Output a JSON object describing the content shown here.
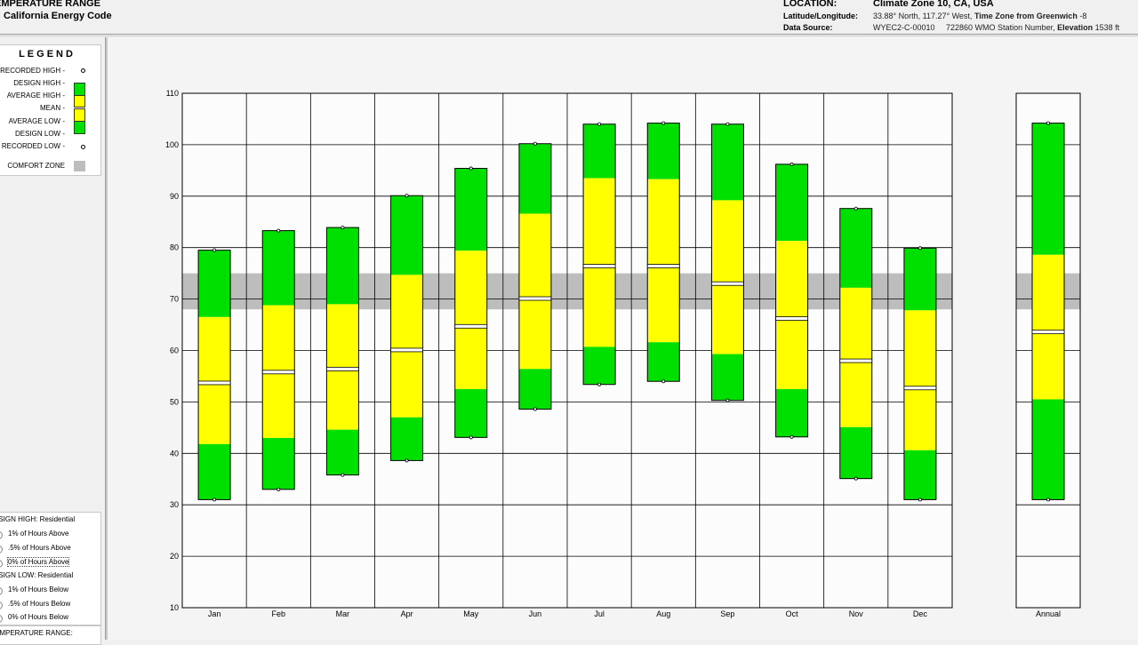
{
  "header": {
    "title_line1": "EMPERATURE RANGE",
    "title_line2": "California Energy Code",
    "location_label": "LOCATION:",
    "location_value": "Climate Zone 10, CA, USA",
    "latlon_label": "Latitude/Longitude:",
    "latlon_value": "33.88° North, 117.27° West,",
    "tz_label": "Time Zone from Greenwich",
    "tz_value": "-8",
    "source_label": "Data Source:",
    "source_value": "WYEC2-C-00010     722860 WMO Station Number,",
    "elev_label": "Elevation",
    "elev_value": "1538 ft"
  },
  "legend": {
    "title": "LEGEND",
    "recorded_high": "RECORDED HIGH -",
    "design_high": "DESIGN HIGH -",
    "average_high": "AVERAGE HIGH -",
    "mean": "MEAN -",
    "average_low": "AVERAGE LOW -",
    "design_low": "DESIGN LOW -",
    "recorded_low": "RECORDED LOW -",
    "comfort_zone": "COMFORT ZONE"
  },
  "options": {
    "design_high_heading": "ESIGN HIGH:  Residential",
    "high_options": [
      {
        "label": "1% of Hours Above",
        "selected": false
      },
      {
        "label": ".5% of Hours Above",
        "selected": false
      },
      {
        "label": "0% of Hours Above",
        "selected": true
      }
    ],
    "design_low_heading": "ESIGN LOW:  Residential",
    "low_options": [
      {
        "label": "1% of Hours Below",
        "selected": false
      },
      {
        "label": ".5% of Hours Below",
        "selected": false
      },
      {
        "label": "0% of Hours Below",
        "selected": true
      }
    ],
    "temperature_range_label": "EMPERATURE RANGE:"
  },
  "colors": {
    "design_band": "#00e000",
    "average_band": "#ffff00",
    "comfort_zone": "#bdbdbd",
    "plot_bg": "#fcfcfc"
  },
  "chart_data": {
    "type": "bar",
    "ylim": [
      10,
      110
    ],
    "yticks": [
      10,
      20,
      30,
      40,
      50,
      60,
      70,
      80,
      90,
      100,
      110
    ],
    "comfort_zone": [
      68,
      75
    ],
    "grid": true,
    "categories": [
      "Jan",
      "Feb",
      "Mar",
      "Apr",
      "May",
      "Jun",
      "Jul",
      "Aug",
      "Sep",
      "Oct",
      "Nov",
      "Dec"
    ],
    "annual_label": "Annual",
    "monthly": [
      {
        "recorded_high": 79.5,
        "design_high": 79.5,
        "average_high": 66.5,
        "mean": 53.7,
        "average_low": 41.8,
        "design_low": 31,
        "recorded_low": 31
      },
      {
        "recorded_high": 83.3,
        "design_high": 83.3,
        "average_high": 68.8,
        "mean": 55.8,
        "average_low": 43,
        "design_low": 33,
        "recorded_low": 33
      },
      {
        "recorded_high": 83.9,
        "design_high": 83.9,
        "average_high": 69,
        "mean": 56.4,
        "average_low": 44.6,
        "design_low": 35.8,
        "recorded_low": 35.8
      },
      {
        "recorded_high": 90.1,
        "design_high": 90.1,
        "average_high": 74.7,
        "mean": 60.1,
        "average_low": 47,
        "design_low": 38.6,
        "recorded_low": 38.6
      },
      {
        "recorded_high": 95.4,
        "design_high": 95.4,
        "average_high": 79.4,
        "mean": 64.7,
        "average_low": 52.5,
        "design_low": 43.1,
        "recorded_low": 43.1
      },
      {
        "recorded_high": 100.2,
        "design_high": 100.2,
        "average_high": 86.6,
        "mean": 70.1,
        "average_low": 56.4,
        "design_low": 48.6,
        "recorded_low": 48.6
      },
      {
        "recorded_high": 104,
        "design_high": 104,
        "average_high": 93.5,
        "mean": 76.4,
        "average_low": 60.7,
        "design_low": 53.4,
        "recorded_low": 53.4
      },
      {
        "recorded_high": 104.2,
        "design_high": 104.2,
        "average_high": 93.3,
        "mean": 76.4,
        "average_low": 61.6,
        "design_low": 54,
        "recorded_low": 54
      },
      {
        "recorded_high": 104,
        "design_high": 104,
        "average_high": 89.2,
        "mean": 73,
        "average_low": 59.3,
        "design_low": 50.3,
        "recorded_low": 50.3
      },
      {
        "recorded_high": 96.2,
        "design_high": 96.2,
        "average_high": 81.3,
        "mean": 66.2,
        "average_low": 52.5,
        "design_low": 43.2,
        "recorded_low": 43.2
      },
      {
        "recorded_high": 87.6,
        "design_high": 87.6,
        "average_high": 72.2,
        "mean": 58,
        "average_low": 45.1,
        "design_low": 35.1,
        "recorded_low": 35.1
      },
      {
        "recorded_high": 79.9,
        "design_high": 79.9,
        "average_high": 67.8,
        "mean": 52.7,
        "average_low": 40.6,
        "design_low": 31,
        "recorded_low": 31
      }
    ],
    "annual": {
      "recorded_high": 104.2,
      "design_high": 104.2,
      "average_high": 78.6,
      "mean": 63.6,
      "average_low": 50.5,
      "design_low": 31,
      "recorded_low": 31
    }
  }
}
